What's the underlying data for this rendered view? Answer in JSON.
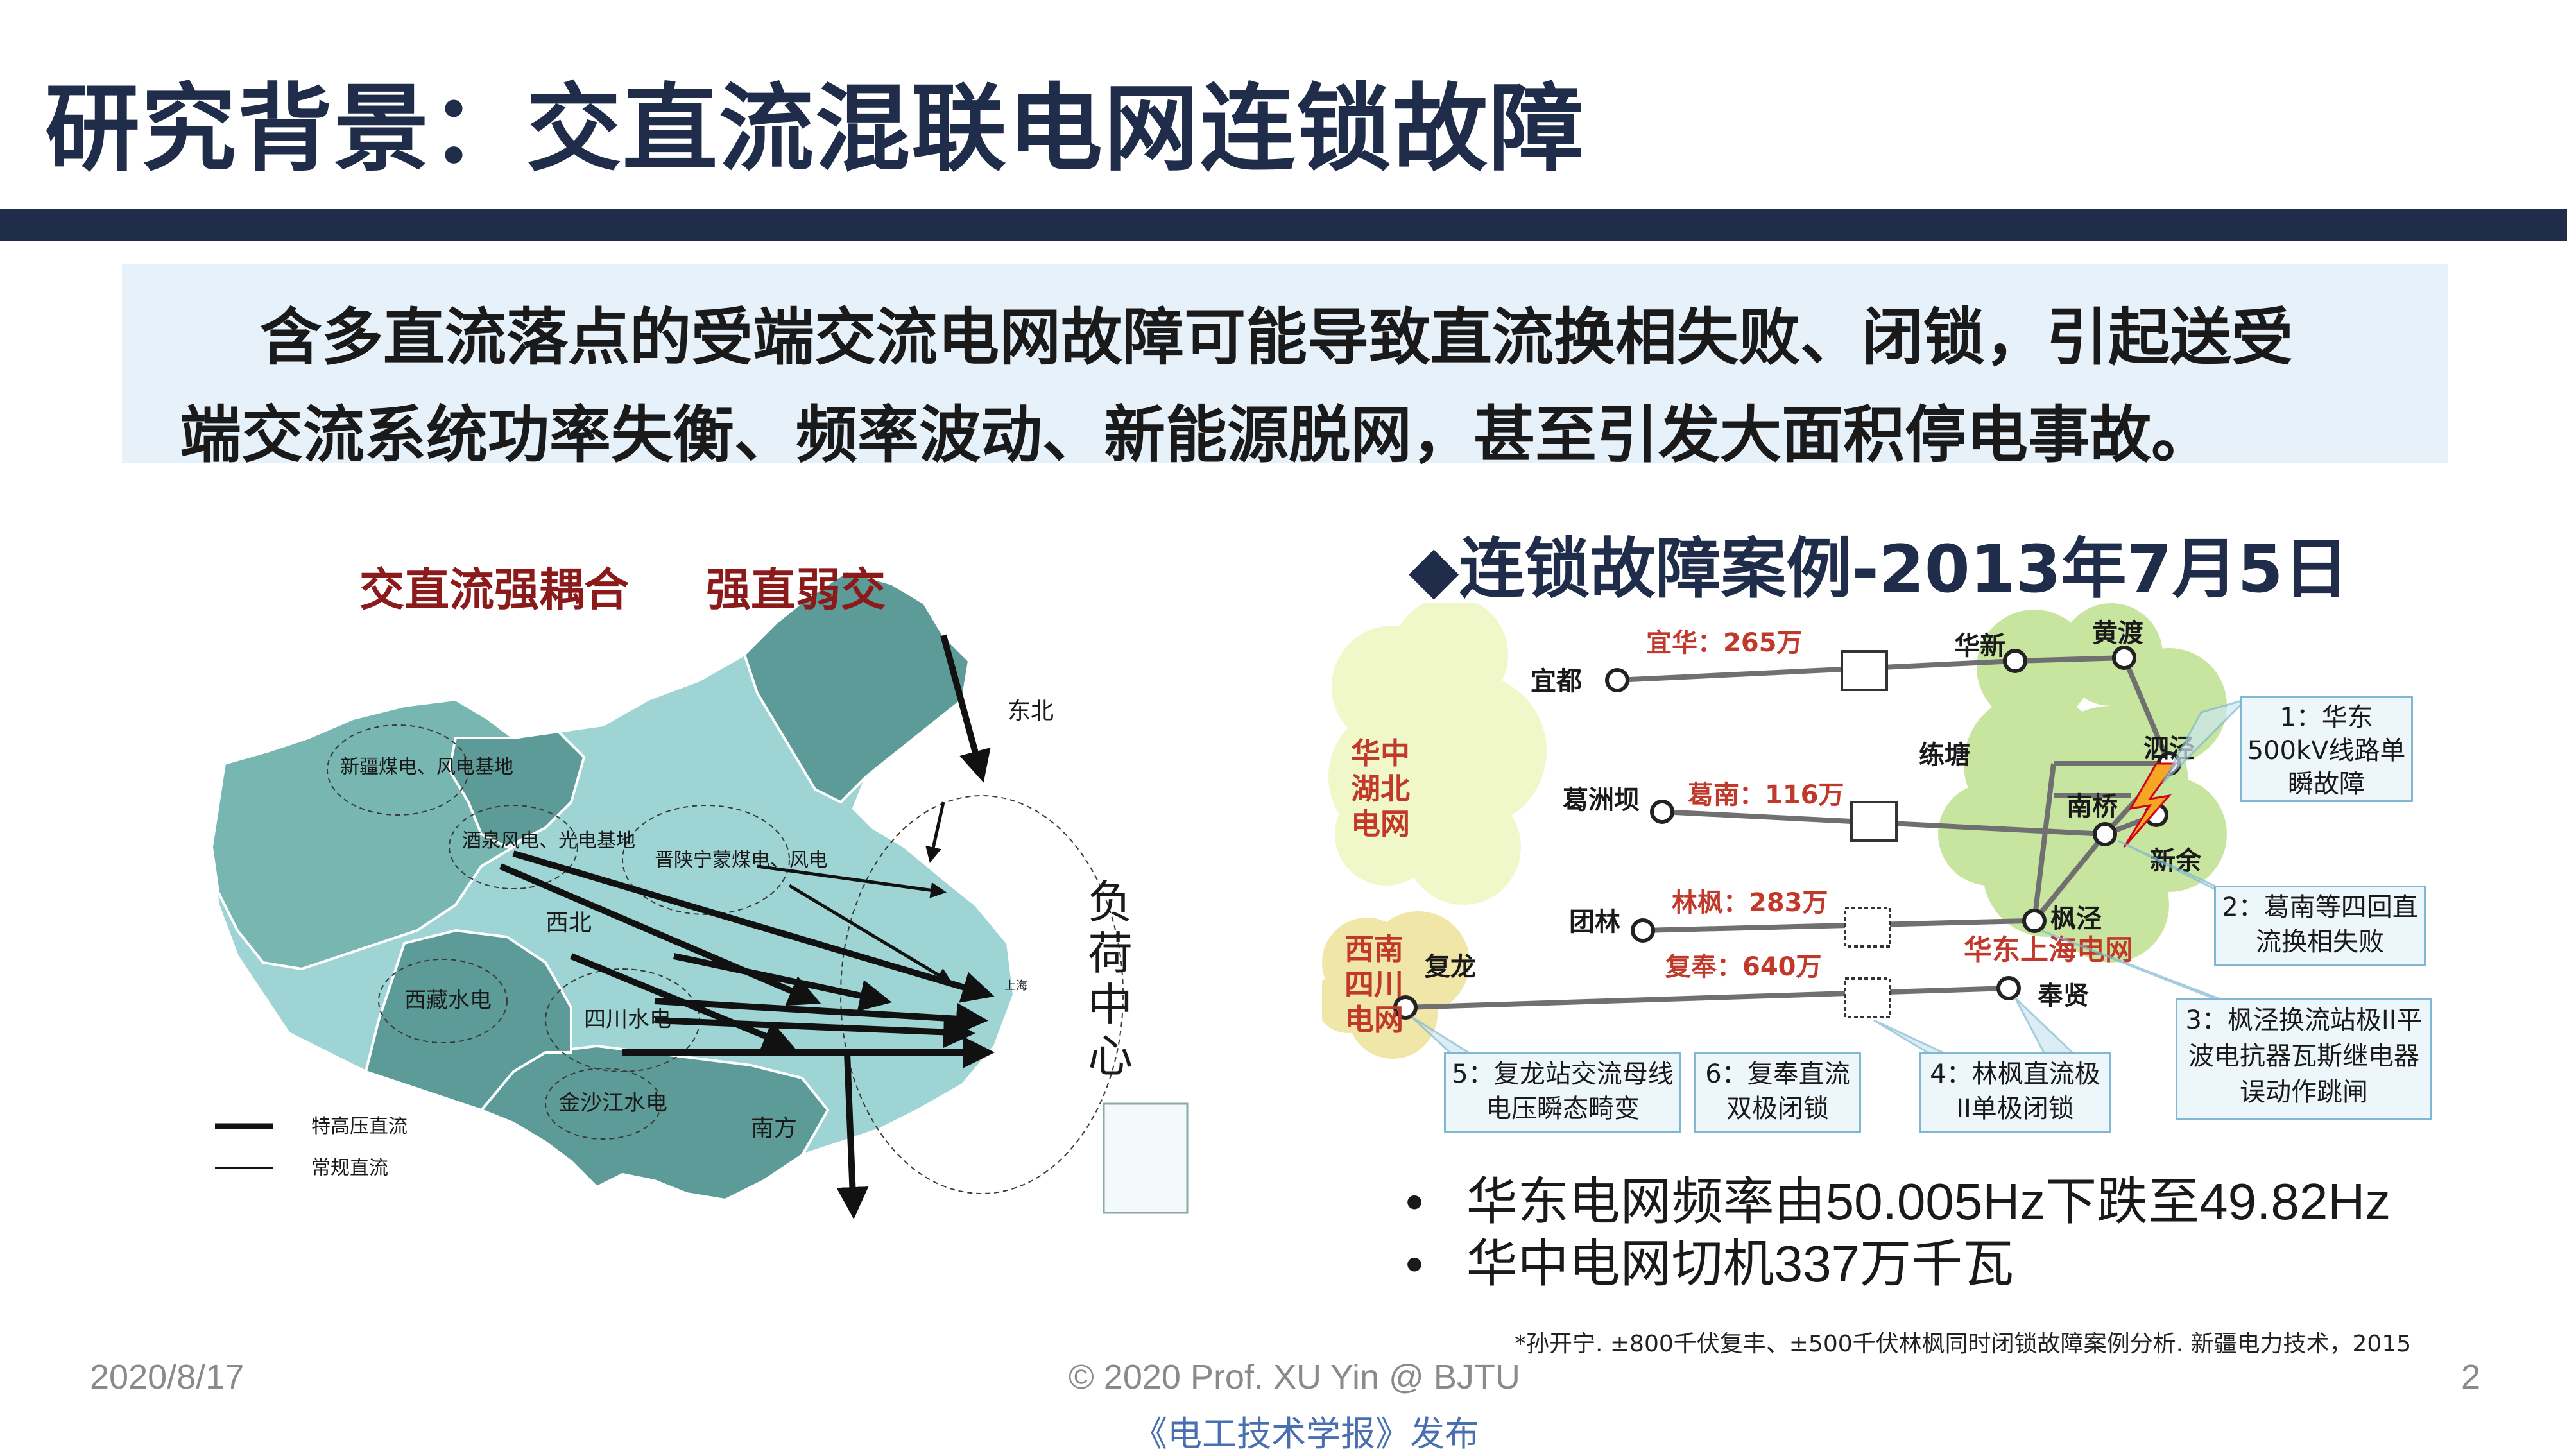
{
  "slide": {
    "title": "研究背景：交直流混联电网连锁故障",
    "intro_line1": "含多直流落点的受端交流电网故障可能导致直流换相失败、闭锁，引起送受",
    "intro_line2": "端交流系统功率失衡、频率波动、新能源脱网，甚至引发大面积停电事故。"
  },
  "map": {
    "heading_left": "交直流强耦合",
    "heading_right": "强直弱交",
    "regions": {
      "xinjiang": "新疆煤电、风电基地",
      "jiuquan": "酒泉风电、光电基地",
      "jinshan": "晋陕宁蒙煤电、风电",
      "northwest": "西北",
      "northeast": "东北",
      "tibet": "西藏水电",
      "sichuan": "四川水电",
      "jinsha": "金沙江水电",
      "south": "南方",
      "shanghai": "上海"
    },
    "load_center": "负荷中心",
    "legend_uhv": "特高压直流",
    "legend_normal": "常规直流",
    "colors": {
      "dark_region": "#5c9b97",
      "mid_region": "#78b6b2",
      "light_region": "#9fd4d4",
      "heading": "#8b1a1a"
    }
  },
  "case": {
    "title": "◆连锁故障案例-2013年7月5日",
    "regions": {
      "central": "华中湖北电网",
      "southwest": "西南四川电网",
      "east": "华东上海电网"
    },
    "stations": {
      "yidu": "宜都",
      "gezhouba": "葛洲坝",
      "tuanlin": "团林",
      "fulong": "复龙",
      "huaxin": "华新",
      "huangdu": "黄渡",
      "liantang": "练塘",
      "sijing": "泗泾",
      "nanqiao": "南桥",
      "xinyu": "新余",
      "fengjing": "枫泾",
      "fengxian": "奉贤"
    },
    "links": {
      "yihua": "宜华：265万",
      "genan": "葛南：116万",
      "linfeng": "林枫：283万",
      "fufeng": "复奉：640万"
    },
    "events": {
      "e1": "1：华东500kV线路单瞬故障",
      "e2": "2：葛南等四回直流换相失败",
      "e3": "3：枫泾换流站极II平波电抗器瓦斯继电器误动作跳闸",
      "e4": "4：林枫直流极II单极闭锁",
      "e5": "5：复龙站交流母线电压瞬态畸变",
      "e6": "6：复奉直流双极闭锁"
    },
    "colors": {
      "cloud": "#dff0b0",
      "east_cloud": "#c8e5a0",
      "link_label": "#c0392b",
      "event_box": "#edf6fa"
    }
  },
  "bullets": [
    "华东电网频率由50.005Hz下跌至49.82Hz",
    "华中电网切机337万千瓦"
  ],
  "citation": "*孙开宁. ±800千伏复丰、±500千伏林枫同时闭锁故障案例分析. 新疆电力技术，2015",
  "footer": {
    "date": "2020/8/17",
    "copyright": "© 2020 Prof. XU Yin @ BJTU",
    "page": "2",
    "publisher": "《电工技术学报》发布"
  }
}
